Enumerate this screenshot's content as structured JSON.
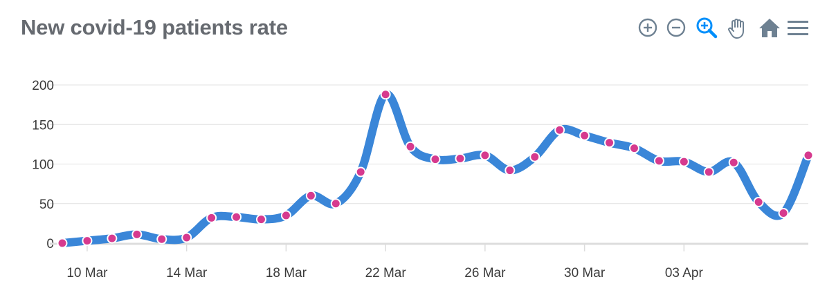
{
  "title": "New covid-19 patients rate",
  "toolbar": {
    "tools": [
      {
        "name": "zoom-in-icon",
        "color": "#6e8192"
      },
      {
        "name": "zoom-out-icon",
        "color": "#6e8192"
      },
      {
        "name": "selection-zoom-icon",
        "color": "#008ffb"
      },
      {
        "name": "pan-hand-icon",
        "color": "#6e8192"
      },
      {
        "name": "reset-home-icon",
        "color": "#6e8192"
      },
      {
        "name": "menu-icon",
        "color": "#6e8192"
      }
    ]
  },
  "colors": {
    "line": "#3a86d8",
    "marker": "#d63a8e",
    "marker_stroke": "#ffffff",
    "grid": "#e0e0e0",
    "axis": "#dcdcdc"
  },
  "chart_data": {
    "type": "line",
    "title": "New covid-19 patients rate",
    "xlabel": "",
    "ylabel": "",
    "x": [
      "2020-03-09",
      "2020-03-10",
      "2020-03-11",
      "2020-03-12",
      "2020-03-13",
      "2020-03-14",
      "2020-03-15",
      "2020-03-16",
      "2020-03-17",
      "2020-03-18",
      "2020-03-19",
      "2020-03-20",
      "2020-03-21",
      "2020-03-22",
      "2020-03-23",
      "2020-03-24",
      "2020-03-25",
      "2020-03-26",
      "2020-03-27",
      "2020-03-28",
      "2020-03-29",
      "2020-03-30",
      "2020-03-31",
      "2020-04-01",
      "2020-04-02",
      "2020-04-03",
      "2020-04-04",
      "2020-04-05",
      "2020-04-06",
      "2020-04-07",
      "2020-04-08"
    ],
    "series": [
      {
        "values": [
          0,
          3,
          6,
          11,
          5,
          7,
          32,
          33,
          30,
          35,
          60,
          50,
          90,
          188,
          122,
          106,
          107,
          111,
          92,
          109,
          143,
          136,
          127,
          120,
          104,
          103,
          90,
          102,
          52,
          38,
          111
        ]
      }
    ],
    "ylim": [
      0,
      200
    ],
    "yticks": [
      "0",
      "50",
      "100",
      "150",
      "200"
    ],
    "xticks": [
      "10 Mar",
      "14 Mar",
      "18 Mar",
      "22 Mar",
      "26 Mar",
      "30 Mar",
      "03 Apr"
    ],
    "xtick_index": [
      1,
      5,
      9,
      13,
      17,
      21,
      25
    ],
    "grid": true,
    "legend": "none"
  }
}
